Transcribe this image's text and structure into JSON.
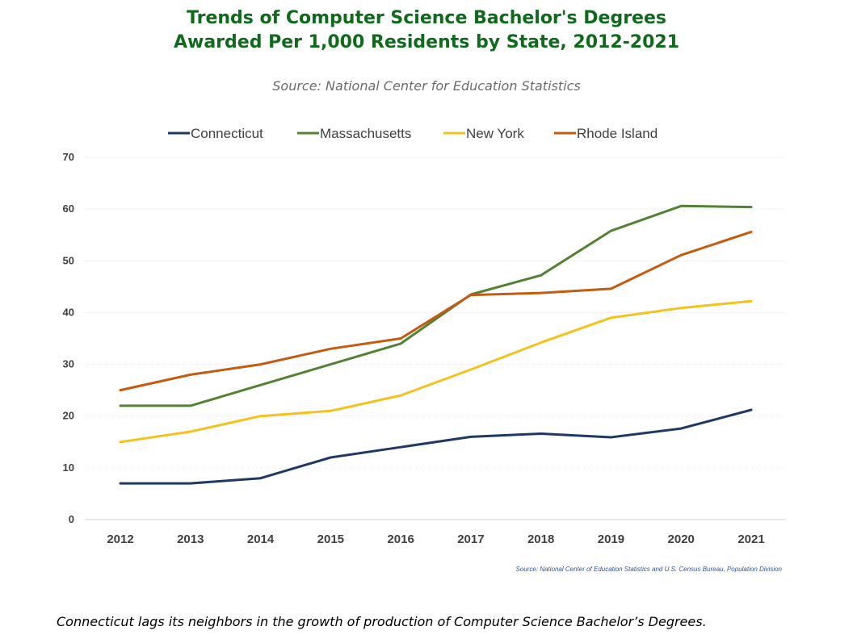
{
  "title_line1": "Trends of Computer Science Bachelor's Degrees",
  "title_line2": "Awarded Per 1,000 Residents by State, 2012-2021",
  "subtitle": "Source: National Center for Education Statistics",
  "caption": "Connecticut lags its neighbors in the growth of production of Computer Science Bachelor’s Degrees.",
  "chart_data": {
    "type": "line",
    "categories": [
      "2012",
      "2013",
      "2014",
      "2015",
      "2016",
      "2017",
      "2018",
      "2019",
      "2020",
      "2021"
    ],
    "ylim": [
      0,
      70
    ],
    "yticks": [
      0,
      10,
      20,
      30,
      40,
      50,
      60,
      70
    ],
    "grid": true,
    "legend": "top",
    "source_note": "Source: National Center of Education Statistics and U.S. Census Bureau, Population Division",
    "series": [
      {
        "name": "Connecticut",
        "color": "#203864",
        "values": [
          7,
          7,
          8,
          12,
          14,
          16,
          16.6,
          15.9,
          17.6,
          21.2
        ]
      },
      {
        "name": "Massachusetts",
        "color": "#548235",
        "values": [
          22,
          22,
          26,
          30,
          34,
          43.5,
          47.2,
          55.8,
          60.6,
          60.4
        ]
      },
      {
        "name": "New York",
        "color": "#f4c21c",
        "values": [
          15,
          17,
          20,
          21,
          24,
          29,
          34.2,
          39,
          40.9,
          42.2
        ]
      },
      {
        "name": "Rhode Island",
        "color": "#c55a11",
        "values": [
          25,
          28,
          30,
          33,
          35,
          43.4,
          43.8,
          44.6,
          51.1,
          55.6
        ]
      }
    ]
  }
}
